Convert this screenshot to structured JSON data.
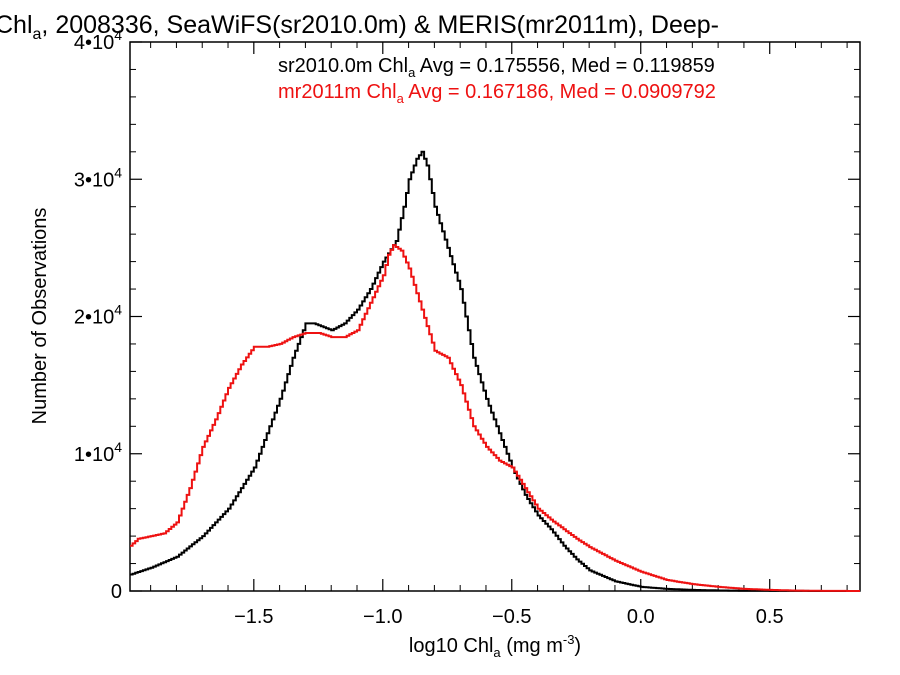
{
  "chart_data": {
    "type": "line",
    "step": true,
    "title_parts": [
      "Chl",
      "a",
      ", 2008336, SeaWiFS(sr2010.0m) & MERIS(mr2011m), Deep-"
    ],
    "xlabel_parts": [
      "log10 Chl",
      "a",
      " (mg m",
      "-3",
      ")"
    ],
    "ylabel": "Number of Observations",
    "xlim": [
      -1.98,
      0.85
    ],
    "ylim": [
      0,
      40000
    ],
    "x_ticks": [
      -1.5,
      -1.0,
      -0.5,
      0.0,
      0.5
    ],
    "x_tick_labels": [
      "−1.5",
      "−1.0",
      "−0.5",
      "0.0",
      "0.5"
    ],
    "y_ticks": [
      0,
      10000,
      20000,
      30000,
      40000
    ],
    "y_tick_labels": [
      {
        "mantissa": "0",
        "exp": ""
      },
      {
        "mantissa": "1•10",
        "exp": "4"
      },
      {
        "mantissa": "2•10",
        "exp": "4"
      },
      {
        "mantissa": "3•10",
        "exp": "4"
      },
      {
        "mantissa": "4•10",
        "exp": "4"
      }
    ],
    "grid": false,
    "annotations": [
      {
        "color": "#000000",
        "parts": [
          "sr2010.0m Chl",
          "a",
          " Avg = 0.175556, Med = 0.119859"
        ]
      },
      {
        "color": "#ee1111",
        "parts": [
          "mr2011m Chl",
          "a",
          " Avg = 0.167186, Med = 0.0909792"
        ]
      }
    ],
    "series": [
      {
        "color": "#000000",
        "x": [
          -1.98,
          -1.9,
          -1.8,
          -1.7,
          -1.6,
          -1.5,
          -1.45,
          -1.4,
          -1.35,
          -1.3,
          -1.27,
          -1.2,
          -1.15,
          -1.1,
          -1.05,
          -1.0,
          -0.95,
          -0.92,
          -0.9,
          -0.87,
          -0.85,
          -0.83,
          -0.8,
          -0.75,
          -0.7,
          -0.65,
          -0.6,
          -0.55,
          -0.5,
          -0.45,
          -0.4,
          -0.35,
          -0.3,
          -0.25,
          -0.2,
          -0.1,
          0.0,
          0.1,
          0.2,
          0.3,
          0.4,
          0.5,
          0.6,
          0.7,
          0.85
        ],
        "y": [
          1200,
          1700,
          2500,
          4000,
          6000,
          9000,
          11500,
          14000,
          17000,
          19500,
          19500,
          19000,
          19500,
          20500,
          22000,
          24000,
          25500,
          28000,
          30000,
          31500,
          32000,
          31000,
          28000,
          25000,
          22000,
          17000,
          14000,
          11500,
          9000,
          7000,
          5500,
          4500,
          3300,
          2300,
          1500,
          700,
          300,
          150,
          80,
          40,
          20,
          10,
          5,
          2,
          0
        ]
      },
      {
        "color": "#ee1111",
        "x": [
          -1.98,
          -1.95,
          -1.9,
          -1.85,
          -1.8,
          -1.75,
          -1.7,
          -1.65,
          -1.6,
          -1.55,
          -1.5,
          -1.45,
          -1.4,
          -1.35,
          -1.3,
          -1.25,
          -1.2,
          -1.15,
          -1.1,
          -1.05,
          -1.0,
          -0.98,
          -0.96,
          -0.93,
          -0.9,
          -0.85,
          -0.8,
          -0.75,
          -0.7,
          -0.65,
          -0.6,
          -0.55,
          -0.5,
          -0.45,
          -0.4,
          -0.35,
          -0.3,
          -0.25,
          -0.2,
          -0.1,
          0.0,
          0.1,
          0.2,
          0.3,
          0.4,
          0.5,
          0.6,
          0.7,
          0.85
        ],
        "y": [
          3300,
          3800,
          4000,
          4200,
          5000,
          7500,
          10500,
          12500,
          14800,
          16500,
          17800,
          17800,
          18000,
          18500,
          18800,
          18800,
          18500,
          18500,
          19000,
          21000,
          23000,
          24500,
          25200,
          24800,
          23500,
          20500,
          17500,
          17000,
          15000,
          12000,
          10500,
          9500,
          9000,
          7500,
          6000,
          5200,
          4500,
          3800,
          3200,
          2200,
          1400,
          800,
          500,
          300,
          150,
          80,
          30,
          10,
          0
        ]
      }
    ]
  }
}
